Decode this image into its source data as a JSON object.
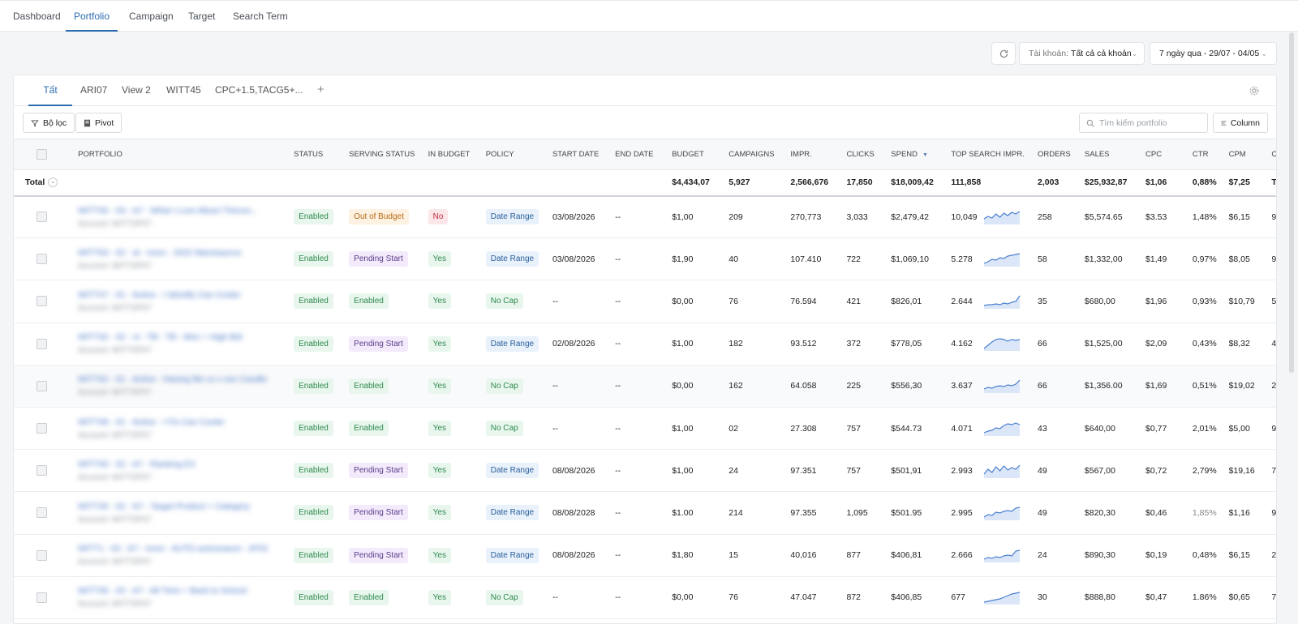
{
  "nav": {
    "tabs": [
      {
        "label": "Dashboard"
      },
      {
        "label": "Portfolio"
      },
      {
        "label": "Campaign"
      },
      {
        "label": "Target"
      },
      {
        "label": "Search Term"
      }
    ]
  },
  "toolbar": {
    "account_label": "Tài khoản:",
    "account_value": "Tất cả cả khoản",
    "date_range": "7 ngày qua - 29/07 - 04/05"
  },
  "view_tabs": [
    {
      "label": "Tất cả"
    },
    {
      "label": "ARI07"
    },
    {
      "label": "View 2"
    },
    {
      "label": "WITT45"
    },
    {
      "label": "CPC+1.5,TACG5+..."
    }
  ],
  "actions": {
    "filter_label": "Bộ lọc",
    "pivot_label": "Pivot",
    "search_placeholder": "Tìm kiếm portfolio",
    "column_label": "Column"
  },
  "columns": [
    "PORTFOLIO",
    "STATUS",
    "SERVING STATUS",
    "IN BUDGET",
    "POLICY",
    "START DATE",
    "END DATE",
    "BUDGET",
    "CAMPAIGNS",
    "IMPR.",
    "CLICKS",
    "SPEND",
    "TOP SEARCH IMPR.",
    "ORDERS",
    "SALES",
    "CPC",
    "CTR",
    "CPM",
    "C"
  ],
  "total": {
    "label": "Total",
    "budget": "$4,434,07",
    "campaigns": "5,927",
    "impr": "2,566,676",
    "clicks": "17,850",
    "spend": "$18,009,42",
    "tsi": "111,858",
    "orders": "2,003",
    "sales": "$25,932,87",
    "cpc": "$1,06",
    "ctr": "0,88%",
    "cpm": "$7,25",
    "extra": "T"
  },
  "rows": [
    {
      "name": "WITT45 - 03 - A7 - What I Love About Thecoo...",
      "account": "Account: WITTSP07",
      "status": "Enabled",
      "serving": "Out of Budget",
      "serving_type": "orange",
      "in_budget": "No",
      "in_budget_type": "red",
      "policy": "Date Range",
      "policy_type": "blue",
      "start": "03/08/2026",
      "end": "--",
      "budget": "$1,00",
      "campaigns": "209",
      "impr": "270,773",
      "clicks": "3,033",
      "spend": "$2,479,42",
      "tsi": "10,049",
      "spark": [
        6,
        9,
        7,
        12,
        8,
        13,
        10,
        14,
        12,
        15
      ],
      "orders": "258",
      "sales": "$5,574.65",
      "cpc": "$3.53",
      "ctr": "1,48%",
      "cpm": "$6,15",
      "extra": "9"
    },
    {
      "name": "WITT63 - 02 - al - mom - 2022 Mamisaurus",
      "account": "Account: WITTSP07",
      "status": "Enabled",
      "serving": "Pending Start",
      "serving_type": "purple",
      "in_budget": "Yes",
      "in_budget_type": "green",
      "policy": "Date Range",
      "policy_type": "blue",
      "start": "03/08/2026",
      "end": "--",
      "budget": "$1,90",
      "campaigns": "40",
      "impr": "107.410",
      "clicks": "722",
      "spend": "$1,069,10",
      "tsi": "5.278",
      "spark": [
        3,
        5,
        8,
        7,
        10,
        9,
        12,
        13,
        14,
        15
      ],
      "orders": "58",
      "sales": "$1,332,00",
      "cpc": "$1,49",
      "ctr": "0,97%",
      "cpm": "$8,05",
      "extra": "9"
    },
    {
      "name": "WITT47 - 01 - Active - I Identify Can Cooler",
      "account": "Account: WITTSP07",
      "status": "Enabled",
      "serving": "Enabled",
      "serving_type": "green",
      "in_budget": "Yes",
      "in_budget_type": "green",
      "policy": "No Cap",
      "policy_type": "green",
      "start": "--",
      "end": "--",
      "budget": "$0,00",
      "campaigns": "76",
      "impr": "76.594",
      "clicks": "421",
      "spend": "$826,01",
      "tsi": "2.644",
      "spark": [
        3,
        4,
        4,
        5,
        4,
        6,
        5,
        7,
        8,
        15
      ],
      "orders": "35",
      "sales": "$680,00",
      "cpc": "$1,96",
      "ctr": "0,93%",
      "cpm": "$10,79",
      "extra": "5"
    },
    {
      "name": "WITT32 - 02 - vt - TB - TB - Mon + High Bid",
      "account": "Account: WITTSP07",
      "status": "Enabled",
      "serving": "Pending Start",
      "serving_type": "purple",
      "in_budget": "Yes",
      "in_budget_type": "green",
      "policy": "Date Range",
      "policy_type": "blue",
      "start": "02/08/2026",
      "end": "--",
      "budget": "$1,00",
      "campaigns": "182",
      "impr": "93.512",
      "clicks": "372",
      "spend": "$778,05",
      "tsi": "4.162",
      "spark": [
        2,
        6,
        10,
        13,
        14,
        13,
        11,
        13,
        12,
        13
      ],
      "orders": "66",
      "sales": "$1,525,00",
      "cpc": "$2,09",
      "ctr": "0,43%",
      "cpm": "$8,32",
      "extra": "4"
    },
    {
      "name": "WITT62 - 01 - Active - Having Me xx x son Candle",
      "account": "Account: WITTSP07",
      "status": "Enabled",
      "serving": "Enabled",
      "serving_type": "green",
      "in_budget": "Yes",
      "in_budget_type": "green",
      "policy": "No Cap",
      "policy_type": "green",
      "start": "--",
      "end": "--",
      "budget": "$0,00",
      "campaigns": "162",
      "impr": "64.058",
      "clicks": "225",
      "spend": "$556,30",
      "tsi": "3.637",
      "spark": [
        4,
        6,
        5,
        7,
        8,
        7,
        9,
        8,
        10,
        15
      ],
      "orders": "66",
      "sales": "$1,356.00",
      "cpc": "$1,69",
      "ctr": "0,51%",
      "cpm": "$19,02",
      "extra": "2"
    },
    {
      "name": "WITT48 - 01 - Active - I Fix Can Cooler",
      "account": "Account: WITTSP07",
      "status": "Enabled",
      "serving": "Enabled",
      "serving_type": "green",
      "in_budget": "Yes",
      "in_budget_type": "green",
      "policy": "No Cap",
      "policy_type": "green",
      "start": "--",
      "end": "--",
      "budget": "$1,00",
      "campaigns": "02",
      "impr": "27.308",
      "clicks": "757",
      "spend": "$544.73",
      "tsi": "4.071",
      "spark": [
        3,
        5,
        6,
        9,
        8,
        12,
        14,
        13,
        15,
        13
      ],
      "orders": "43",
      "sales": "$640,00",
      "cpc": "$0,77",
      "ctr": "2,01%",
      "cpm": "$5,00",
      "extra": "9"
    },
    {
      "name": "WITT40 - 02 - A7 - Ranking EX",
      "account": "Account: WITTSP07",
      "status": "Enabled",
      "serving": "Pending Start",
      "serving_type": "purple",
      "in_budget": "Yes",
      "in_budget_type": "green",
      "policy": "Date Range",
      "policy_type": "blue",
      "start": "08/08/2026",
      "end": "--",
      "budget": "$1,00",
      "campaigns": "24",
      "impr": "97.351",
      "clicks": "757",
      "spend": "$501,91",
      "tsi": "2.993",
      "spark": [
        4,
        10,
        6,
        13,
        8,
        14,
        9,
        12,
        10,
        15
      ],
      "orders": "49",
      "sales": "$567,00",
      "cpc": "$0,72",
      "ctr": "2,79%",
      "cpm": "$19,16",
      "extra": "7"
    },
    {
      "name": "WITT45 - 02 - A7 - Target Product + Category",
      "account": "Account: WITTSP07",
      "status": "Enabled",
      "serving": "Pending Start",
      "serving_type": "purple",
      "in_budget": "Yes",
      "in_budget_type": "green",
      "policy": "Date Range",
      "policy_type": "blue",
      "start": "08/08/2028",
      "end": "--",
      "budget": "$1.00",
      "campaigns": "214",
      "impr": "97.355",
      "clicks": "1,095",
      "spend": "$501.95",
      "tsi": "2.995",
      "spark": [
        3,
        6,
        5,
        9,
        8,
        10,
        11,
        10,
        14,
        15
      ],
      "orders": "49",
      "sales": "$820,30",
      "cpc": "$0,46",
      "ctr": "1,85%",
      "cpm": "$1,16",
      "extra": "9"
    },
    {
      "name": "WITT1 - 02 - A7 - mom - AUTO autoseason - AT01",
      "account": "Account: WITTSP07",
      "status": "Enabled",
      "serving": "Pending Start",
      "serving_type": "purple",
      "in_budget": "Yes",
      "in_budget_type": "green",
      "policy": "Date Range",
      "policy_type": "blue",
      "start": "08/08/2026",
      "end": "--",
      "budget": "$1,80",
      "campaigns": "15",
      "impr": "40,016",
      "clicks": "877",
      "spend": "$406,81",
      "tsi": "2.666",
      "spark": [
        3,
        5,
        4,
        6,
        5,
        7,
        8,
        7,
        13,
        14
      ],
      "orders": "24",
      "sales": "$890,30",
      "cpc": "$0,19",
      "ctr": "0,48%",
      "cpm": "$6,15",
      "extra": "2"
    },
    {
      "name": "WITT45 - 02 - A7 - All Time + Back to School",
      "account": "Account: WITTSP07",
      "status": "Enabled",
      "serving": "Enabled",
      "serving_type": "green",
      "in_budget": "Yes",
      "in_budget_type": "green",
      "policy": "No Cap",
      "policy_type": "green",
      "start": "--",
      "end": "--",
      "budget": "$0,00",
      "campaigns": "76",
      "impr": "47.047",
      "clicks": "872",
      "spend": "$406,85",
      "tsi": "677",
      "spark": [
        2,
        3,
        4,
        5,
        6,
        8,
        10,
        12,
        13,
        14
      ],
      "orders": "30",
      "sales": "$888,80",
      "cpc": "$0,47",
      "ctr": "1.86%",
      "cpm": "$0,65",
      "extra": "7"
    }
  ],
  "icons": {
    "refresh": "refresh-icon",
    "filter": "filter-icon",
    "pivot": "pivot-icon",
    "search": "search-icon",
    "column": "column-icon",
    "settings": "gear-icon"
  },
  "colors": {
    "accent": "#2b6cb0",
    "link": "#3b6fc4",
    "spark_line": "#4a7fd0",
    "spark_fill": "#dbe7f8"
  }
}
